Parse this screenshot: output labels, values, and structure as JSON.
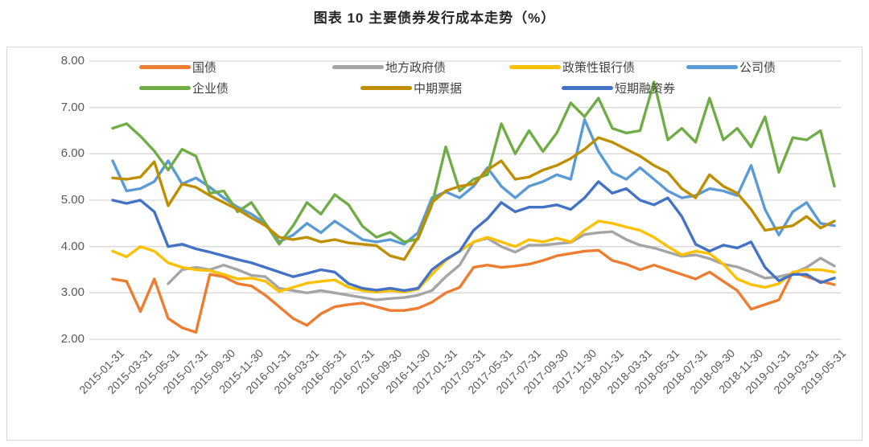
{
  "title": "图表 10 主要债券发行成本走势（%）",
  "colors": {
    "background": "#FFFFFF",
    "panel_border": "#D9D9D9",
    "grid": "#D9D9D9",
    "axis_text": "#595959",
    "title_text": "#262626"
  },
  "chart_data": {
    "type": "line",
    "title": "图表 10 主要债券发行成本走势（%）",
    "ylim": [
      2.0,
      8.0
    ],
    "y_tick_labels": [
      "8.00",
      "7.00",
      "6.00",
      "5.00",
      "4.00",
      "3.00",
      "2.00"
    ],
    "grid": true,
    "legend_position": "top",
    "x": [
      "2015-01-31",
      "2015-02-28",
      "2015-03-31",
      "2015-04-30",
      "2015-05-31",
      "2015-06-30",
      "2015-07-31",
      "2015-08-31",
      "2015-09-30",
      "2015-10-31",
      "2015-11-30",
      "2015-12-31",
      "2016-01-31",
      "2016-02-29",
      "2016-03-31",
      "2016-04-30",
      "2016-05-31",
      "2016-06-30",
      "2016-07-31",
      "2016-08-31",
      "2016-09-30",
      "2016-10-31",
      "2016-11-30",
      "2016-12-31",
      "2017-01-31",
      "2017-02-28",
      "2017-03-31",
      "2017-04-30",
      "2017-05-31",
      "2017-06-30",
      "2017-07-31",
      "2017-08-31",
      "2017-09-30",
      "2017-10-31",
      "2017-11-30",
      "2017-12-31",
      "2018-01-31",
      "2018-02-28",
      "2018-03-31",
      "2018-04-30",
      "2018-05-31",
      "2018-06-30",
      "2018-07-31",
      "2018-08-31",
      "2018-09-30",
      "2018-10-31",
      "2018-11-30",
      "2018-12-31",
      "2019-01-31",
      "2019-02-28",
      "2019-03-31",
      "2019-04-30",
      "2019-05-31"
    ],
    "x_tick_labels": [
      "2015-01-31",
      "2015-03-31",
      "2015-05-31",
      "2015-07-31",
      "2015-09-30",
      "2015-11-30",
      "2016-01-31",
      "2016-03-31",
      "2016-05-31",
      "2016-07-31",
      "2016-09-30",
      "2016-11-30",
      "2017-01-31",
      "2017-03-31",
      "2017-05-31",
      "2017-07-31",
      "2017-09-30",
      "2017-11-30",
      "2018-01-31",
      "2018-03-31",
      "2018-05-31",
      "2018-07-31",
      "2018-09-30",
      "2018-11-30",
      "2019-01-31",
      "2019-03-31",
      "2019-05-31"
    ],
    "series": [
      {
        "name": "国债",
        "color": "#ED7D31",
        "values": [
          3.3,
          3.25,
          2.6,
          3.3,
          2.45,
          2.25,
          2.15,
          3.4,
          3.35,
          3.2,
          3.15,
          2.95,
          2.7,
          2.45,
          2.3,
          2.55,
          2.7,
          2.75,
          2.78,
          2.7,
          2.62,
          2.62,
          2.67,
          2.8,
          3.0,
          3.12,
          3.55,
          3.6,
          3.55,
          3.58,
          3.62,
          3.7,
          3.8,
          3.85,
          3.9,
          3.92,
          3.7,
          3.62,
          3.5,
          3.6,
          3.5,
          3.4,
          3.3,
          3.45,
          3.25,
          3.05,
          2.65,
          2.75,
          2.85,
          3.45,
          3.35,
          3.25,
          3.18
        ]
      },
      {
        "name": "地方政府债",
        "color": "#A5A5A5",
        "values": [
          null,
          null,
          null,
          null,
          3.2,
          3.5,
          3.55,
          3.5,
          3.6,
          3.5,
          3.38,
          3.35,
          3.1,
          3.05,
          3.0,
          3.05,
          3.0,
          2.95,
          2.9,
          2.85,
          2.88,
          2.9,
          2.95,
          3.05,
          3.35,
          3.6,
          4.1,
          4.18,
          4.0,
          3.88,
          4.03,
          4.03,
          4.06,
          4.09,
          4.26,
          4.3,
          4.32,
          4.15,
          4.03,
          3.97,
          3.88,
          3.79,
          3.82,
          3.74,
          3.62,
          3.56,
          3.45,
          3.32,
          3.35,
          3.42,
          3.55,
          3.75,
          3.58
        ]
      },
      {
        "name": "政策性银行债",
        "color": "#FFC000",
        "values": [
          3.9,
          3.78,
          4.0,
          3.9,
          3.65,
          3.55,
          3.5,
          3.48,
          3.4,
          3.3,
          3.32,
          3.25,
          3.03,
          3.12,
          3.21,
          3.25,
          3.28,
          3.12,
          3.05,
          3.02,
          3.05,
          3.02,
          3.08,
          3.4,
          3.7,
          3.9,
          4.1,
          4.2,
          4.1,
          4.0,
          4.15,
          4.1,
          4.18,
          4.1,
          4.35,
          4.55,
          4.5,
          4.42,
          4.35,
          4.2,
          4.0,
          3.82,
          3.9,
          3.85,
          3.62,
          3.3,
          3.18,
          3.12,
          3.2,
          3.45,
          3.5,
          3.5,
          3.45
        ]
      },
      {
        "name": "公司债",
        "color": "#5B9BD5",
        "values": [
          5.85,
          5.2,
          5.25,
          5.4,
          5.85,
          5.35,
          5.48,
          5.28,
          5.05,
          4.85,
          4.7,
          4.5,
          4.1,
          4.25,
          4.5,
          4.3,
          4.55,
          4.35,
          4.15,
          4.1,
          4.15,
          4.05,
          4.3,
          5.05,
          5.18,
          5.05,
          5.3,
          5.7,
          5.3,
          5.05,
          5.3,
          5.4,
          5.55,
          5.45,
          6.74,
          6.05,
          5.6,
          5.45,
          5.7,
          5.45,
          5.2,
          5.05,
          5.1,
          5.25,
          5.2,
          5.1,
          5.75,
          4.8,
          4.25,
          4.75,
          4.95,
          4.5,
          4.45
        ]
      },
      {
        "name": "企业债",
        "color": "#70AD47",
        "values": [
          6.55,
          6.65,
          6.38,
          6.06,
          5.65,
          6.1,
          5.95,
          5.15,
          5.2,
          4.75,
          4.95,
          4.5,
          4.05,
          4.45,
          4.95,
          4.7,
          5.12,
          4.9,
          4.44,
          4.2,
          4.31,
          4.1,
          4.16,
          4.9,
          6.15,
          5.2,
          5.45,
          5.55,
          6.65,
          6.0,
          6.5,
          6.05,
          6.45,
          7.1,
          6.8,
          7.2,
          6.55,
          6.45,
          6.5,
          7.55,
          6.3,
          6.55,
          6.25,
          7.2,
          6.3,
          6.55,
          6.15,
          6.8,
          5.6,
          6.35,
          6.3,
          6.5,
          5.3
        ]
      },
      {
        "name": "中期票据",
        "color": "#BF8F00",
        "values": [
          5.48,
          5.45,
          5.5,
          5.83,
          4.88,
          5.35,
          5.28,
          5.1,
          4.95,
          4.8,
          4.62,
          4.45,
          4.2,
          4.15,
          4.2,
          4.1,
          4.15,
          4.08,
          4.05,
          4.02,
          3.8,
          3.72,
          4.2,
          4.95,
          5.2,
          5.3,
          5.35,
          5.65,
          5.85,
          5.45,
          5.5,
          5.65,
          5.75,
          5.9,
          6.1,
          6.35,
          6.25,
          6.1,
          5.95,
          5.75,
          5.6,
          5.25,
          5.05,
          5.55,
          5.3,
          5.15,
          4.8,
          4.35,
          4.4,
          4.45,
          4.65,
          4.4,
          4.55
        ]
      },
      {
        "name": "短期融资券",
        "color": "#4472C4",
        "values": [
          5.0,
          4.93,
          5.0,
          4.75,
          4.0,
          4.05,
          3.95,
          3.88,
          3.8,
          3.72,
          3.65,
          3.55,
          3.45,
          3.35,
          3.42,
          3.5,
          3.45,
          3.2,
          3.1,
          3.06,
          3.1,
          3.05,
          3.1,
          3.5,
          3.72,
          3.9,
          4.35,
          4.6,
          4.95,
          4.75,
          4.85,
          4.85,
          4.9,
          4.8,
          5.05,
          5.4,
          5.15,
          5.25,
          5.0,
          4.9,
          5.05,
          4.65,
          4.05,
          3.9,
          4.03,
          3.97,
          4.1,
          3.55,
          3.26,
          3.4,
          3.4,
          3.22,
          3.32
        ]
      }
    ]
  }
}
